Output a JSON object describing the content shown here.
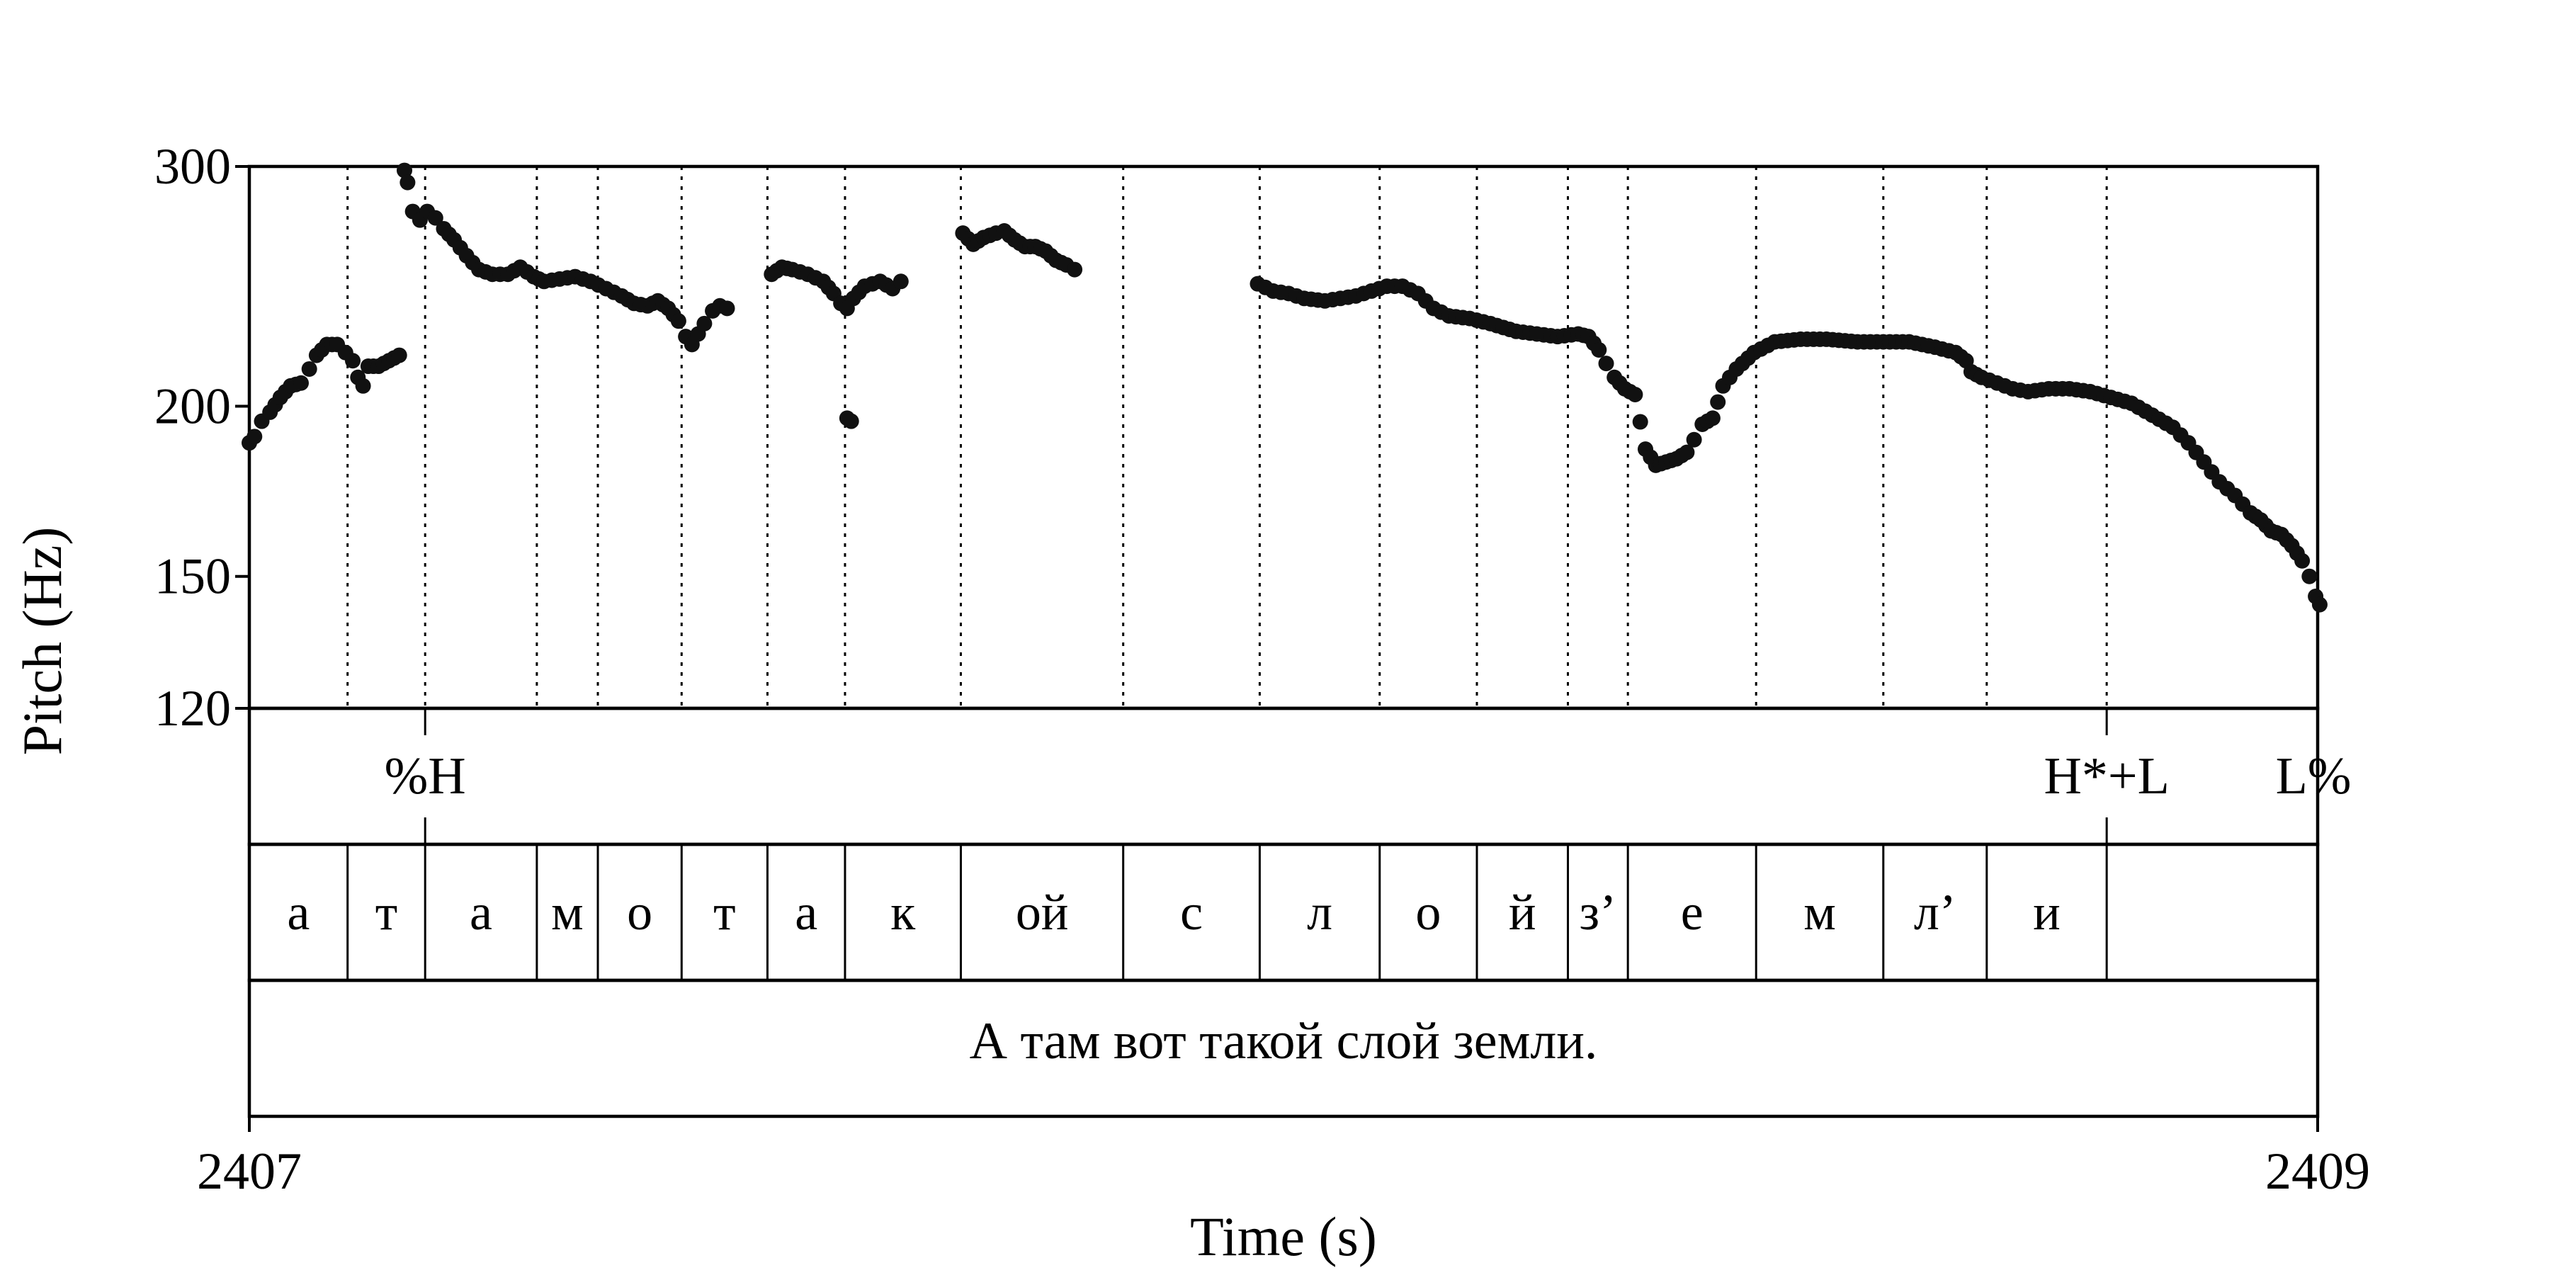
{
  "chart_data": {
    "type": "scatter",
    "xlabel": "Time (s)",
    "ylabel": "Pitch (Hz)",
    "xlim": [
      2407,
      2409
    ],
    "ylim": [
      120,
      300
    ],
    "y_scale": "log",
    "x_ticks": [
      {
        "value": 2407,
        "label": "2407"
      },
      {
        "value": 2409,
        "label": "2409"
      }
    ],
    "y_ticks": [
      {
        "value": 300,
        "label": "300"
      },
      {
        "value": 200,
        "label": "200"
      },
      {
        "value": 150,
        "label": "150"
      },
      {
        "value": 120,
        "label": "120"
      }
    ],
    "boundaries": [
      2407.095,
      2407.17,
      2407.278,
      2407.337,
      2407.418,
      2407.501,
      2407.576,
      2407.688,
      2407.845,
      2407.977,
      2408.093,
      2408.187,
      2408.275,
      2408.333,
      2408.457,
      2408.58,
      2408.68,
      2408.796,
      2409.0
    ],
    "segments": [
      "а",
      "т",
      "а",
      "м",
      "о",
      "т",
      "а",
      "к",
      "ой",
      "с",
      "л",
      "о",
      "й",
      "з’",
      "е",
      "м",
      "л’",
      "и",
      ""
    ],
    "tones": [
      {
        "time": 2407.17,
        "label": "%H"
      },
      {
        "time": 2408.796,
        "label": "H*+L"
      },
      {
        "time": 2409.0,
        "label": "L%"
      }
    ],
    "sentence": "А там вот такой слой земли.",
    "pitch_tracks": [
      {
        "points": [
          [
            2407.0,
            188
          ],
          [
            2407.005,
            190
          ],
          [
            2407.012,
            195
          ],
          [
            2407.02,
            198
          ],
          [
            2407.03,
            203
          ],
          [
            2407.04,
            207
          ],
          [
            2407.05,
            208
          ],
          [
            2407.058,
            213
          ],
          [
            2407.065,
            218
          ],
          [
            2407.075,
            222
          ],
          [
            2407.085,
            222
          ],
          [
            2407.093,
            219
          ],
          [
            2407.1,
            216
          ],
          [
            2407.105,
            210
          ],
          [
            2407.11,
            207
          ],
          [
            2407.115,
            214
          ],
          [
            2407.125,
            214
          ],
          [
            2407.135,
            216
          ],
          [
            2407.145,
            218
          ]
        ]
      },
      {
        "points": [
          [
            2407.15,
            298
          ],
          [
            2407.153,
            292
          ],
          [
            2407.158,
            278
          ],
          [
            2407.165,
            274
          ],
          [
            2407.172,
            278
          ],
          [
            2407.18,
            275
          ],
          [
            2407.188,
            270
          ],
          [
            2407.198,
            265
          ],
          [
            2407.21,
            258
          ],
          [
            2407.222,
            252
          ],
          [
            2407.235,
            250
          ],
          [
            2407.25,
            250
          ],
          [
            2407.262,
            253
          ],
          [
            2407.275,
            249
          ],
          [
            2407.285,
            247
          ],
          [
            2407.3,
            248
          ],
          [
            2407.315,
            249
          ],
          [
            2407.33,
            247
          ],
          [
            2407.345,
            244
          ],
          [
            2407.36,
            241
          ],
          [
            2407.372,
            238
          ],
          [
            2407.385,
            237
          ],
          [
            2407.395,
            239
          ],
          [
            2407.405,
            236
          ],
          [
            2407.415,
            231
          ],
          [
            2407.422,
            225
          ],
          [
            2407.428,
            222
          ],
          [
            2407.434,
            226
          ],
          [
            2407.44,
            230
          ],
          [
            2407.448,
            235
          ],
          [
            2407.455,
            237
          ],
          [
            2407.462,
            236
          ]
        ]
      },
      {
        "points": [
          [
            2407.505,
            250
          ],
          [
            2407.515,
            253
          ],
          [
            2407.525,
            252
          ],
          [
            2407.54,
            250
          ],
          [
            2407.555,
            247
          ],
          [
            2407.565,
            242
          ],
          [
            2407.572,
            238
          ],
          [
            2407.578,
            236
          ],
          [
            2407.584,
            240
          ],
          [
            2407.595,
            245
          ],
          [
            2407.61,
            247
          ],
          [
            2407.622,
            244
          ],
          [
            2407.63,
            247
          ]
        ]
      },
      {
        "points": [
          [
            2407.578,
            196
          ],
          [
            2407.582,
            195
          ]
        ]
      },
      {
        "points": [
          [
            2407.69,
            268
          ],
          [
            2407.7,
            263
          ],
          [
            2407.71,
            266
          ],
          [
            2407.722,
            268
          ],
          [
            2407.73,
            269
          ],
          [
            2407.74,
            265
          ],
          [
            2407.75,
            262
          ],
          [
            2407.76,
            262
          ],
          [
            2407.77,
            260
          ],
          [
            2407.78,
            256
          ],
          [
            2407.79,
            254
          ],
          [
            2407.798,
            252
          ]
        ]
      },
      {
        "points": [
          [
            2407.975,
            246
          ],
          [
            2407.99,
            243
          ],
          [
            2408.005,
            242
          ],
          [
            2408.02,
            240
          ],
          [
            2408.04,
            239
          ],
          [
            2408.055,
            240
          ],
          [
            2408.07,
            241
          ],
          [
            2408.085,
            243
          ],
          [
            2408.1,
            245
          ],
          [
            2408.115,
            245
          ],
          [
            2408.13,
            242
          ],
          [
            2408.145,
            236
          ],
          [
            2408.16,
            233
          ],
          [
            2408.18,
            232
          ],
          [
            2408.2,
            230
          ],
          [
            2408.225,
            227
          ],
          [
            2408.245,
            226
          ],
          [
            2408.265,
            225
          ],
          [
            2408.285,
            226
          ],
          [
            2408.295,
            225
          ],
          [
            2408.305,
            220
          ],
          [
            2408.312,
            215
          ],
          [
            2408.32,
            210
          ],
          [
            2408.33,
            206
          ],
          [
            2408.34,
            204
          ],
          [
            2408.35,
            186
          ],
          [
            2408.36,
            181
          ],
          [
            2408.37,
            182
          ],
          [
            2408.38,
            183
          ],
          [
            2408.39,
            185
          ],
          [
            2408.397,
            189
          ],
          [
            2408.405,
            194
          ],
          [
            2408.415,
            196
          ],
          [
            2408.425,
            207
          ],
          [
            2408.438,
            213
          ],
          [
            2408.455,
            219
          ],
          [
            2408.475,
            223
          ],
          [
            2408.5,
            224
          ],
          [
            2408.525,
            224
          ],
          [
            2408.555,
            223
          ],
          [
            2408.58,
            223
          ],
          [
            2408.605,
            223
          ],
          [
            2408.63,
            221
          ],
          [
            2408.65,
            219
          ],
          [
            2408.66,
            216
          ],
          [
            2408.665,
            212
          ],
          [
            2408.675,
            210
          ],
          [
            2408.69,
            208
          ],
          [
            2408.705,
            206
          ],
          [
            2408.72,
            205
          ],
          [
            2408.74,
            206
          ],
          [
            2408.76,
            206
          ],
          [
            2408.78,
            205
          ],
          [
            2408.8,
            203
          ],
          [
            2408.82,
            201
          ],
          [
            2408.84,
            197
          ],
          [
            2408.86,
            193
          ],
          [
            2408.875,
            188
          ],
          [
            2408.89,
            182
          ],
          [
            2408.905,
            176
          ],
          [
            2408.92,
            172
          ],
          [
            2408.935,
            167
          ],
          [
            2408.945,
            165
          ],
          [
            2408.955,
            162
          ],
          [
            2408.965,
            161
          ],
          [
            2408.975,
            158
          ],
          [
            2408.985,
            154
          ],
          [
            2408.992,
            150
          ],
          [
            2408.998,
            145
          ],
          [
            2409.002,
            143
          ]
        ]
      }
    ]
  }
}
